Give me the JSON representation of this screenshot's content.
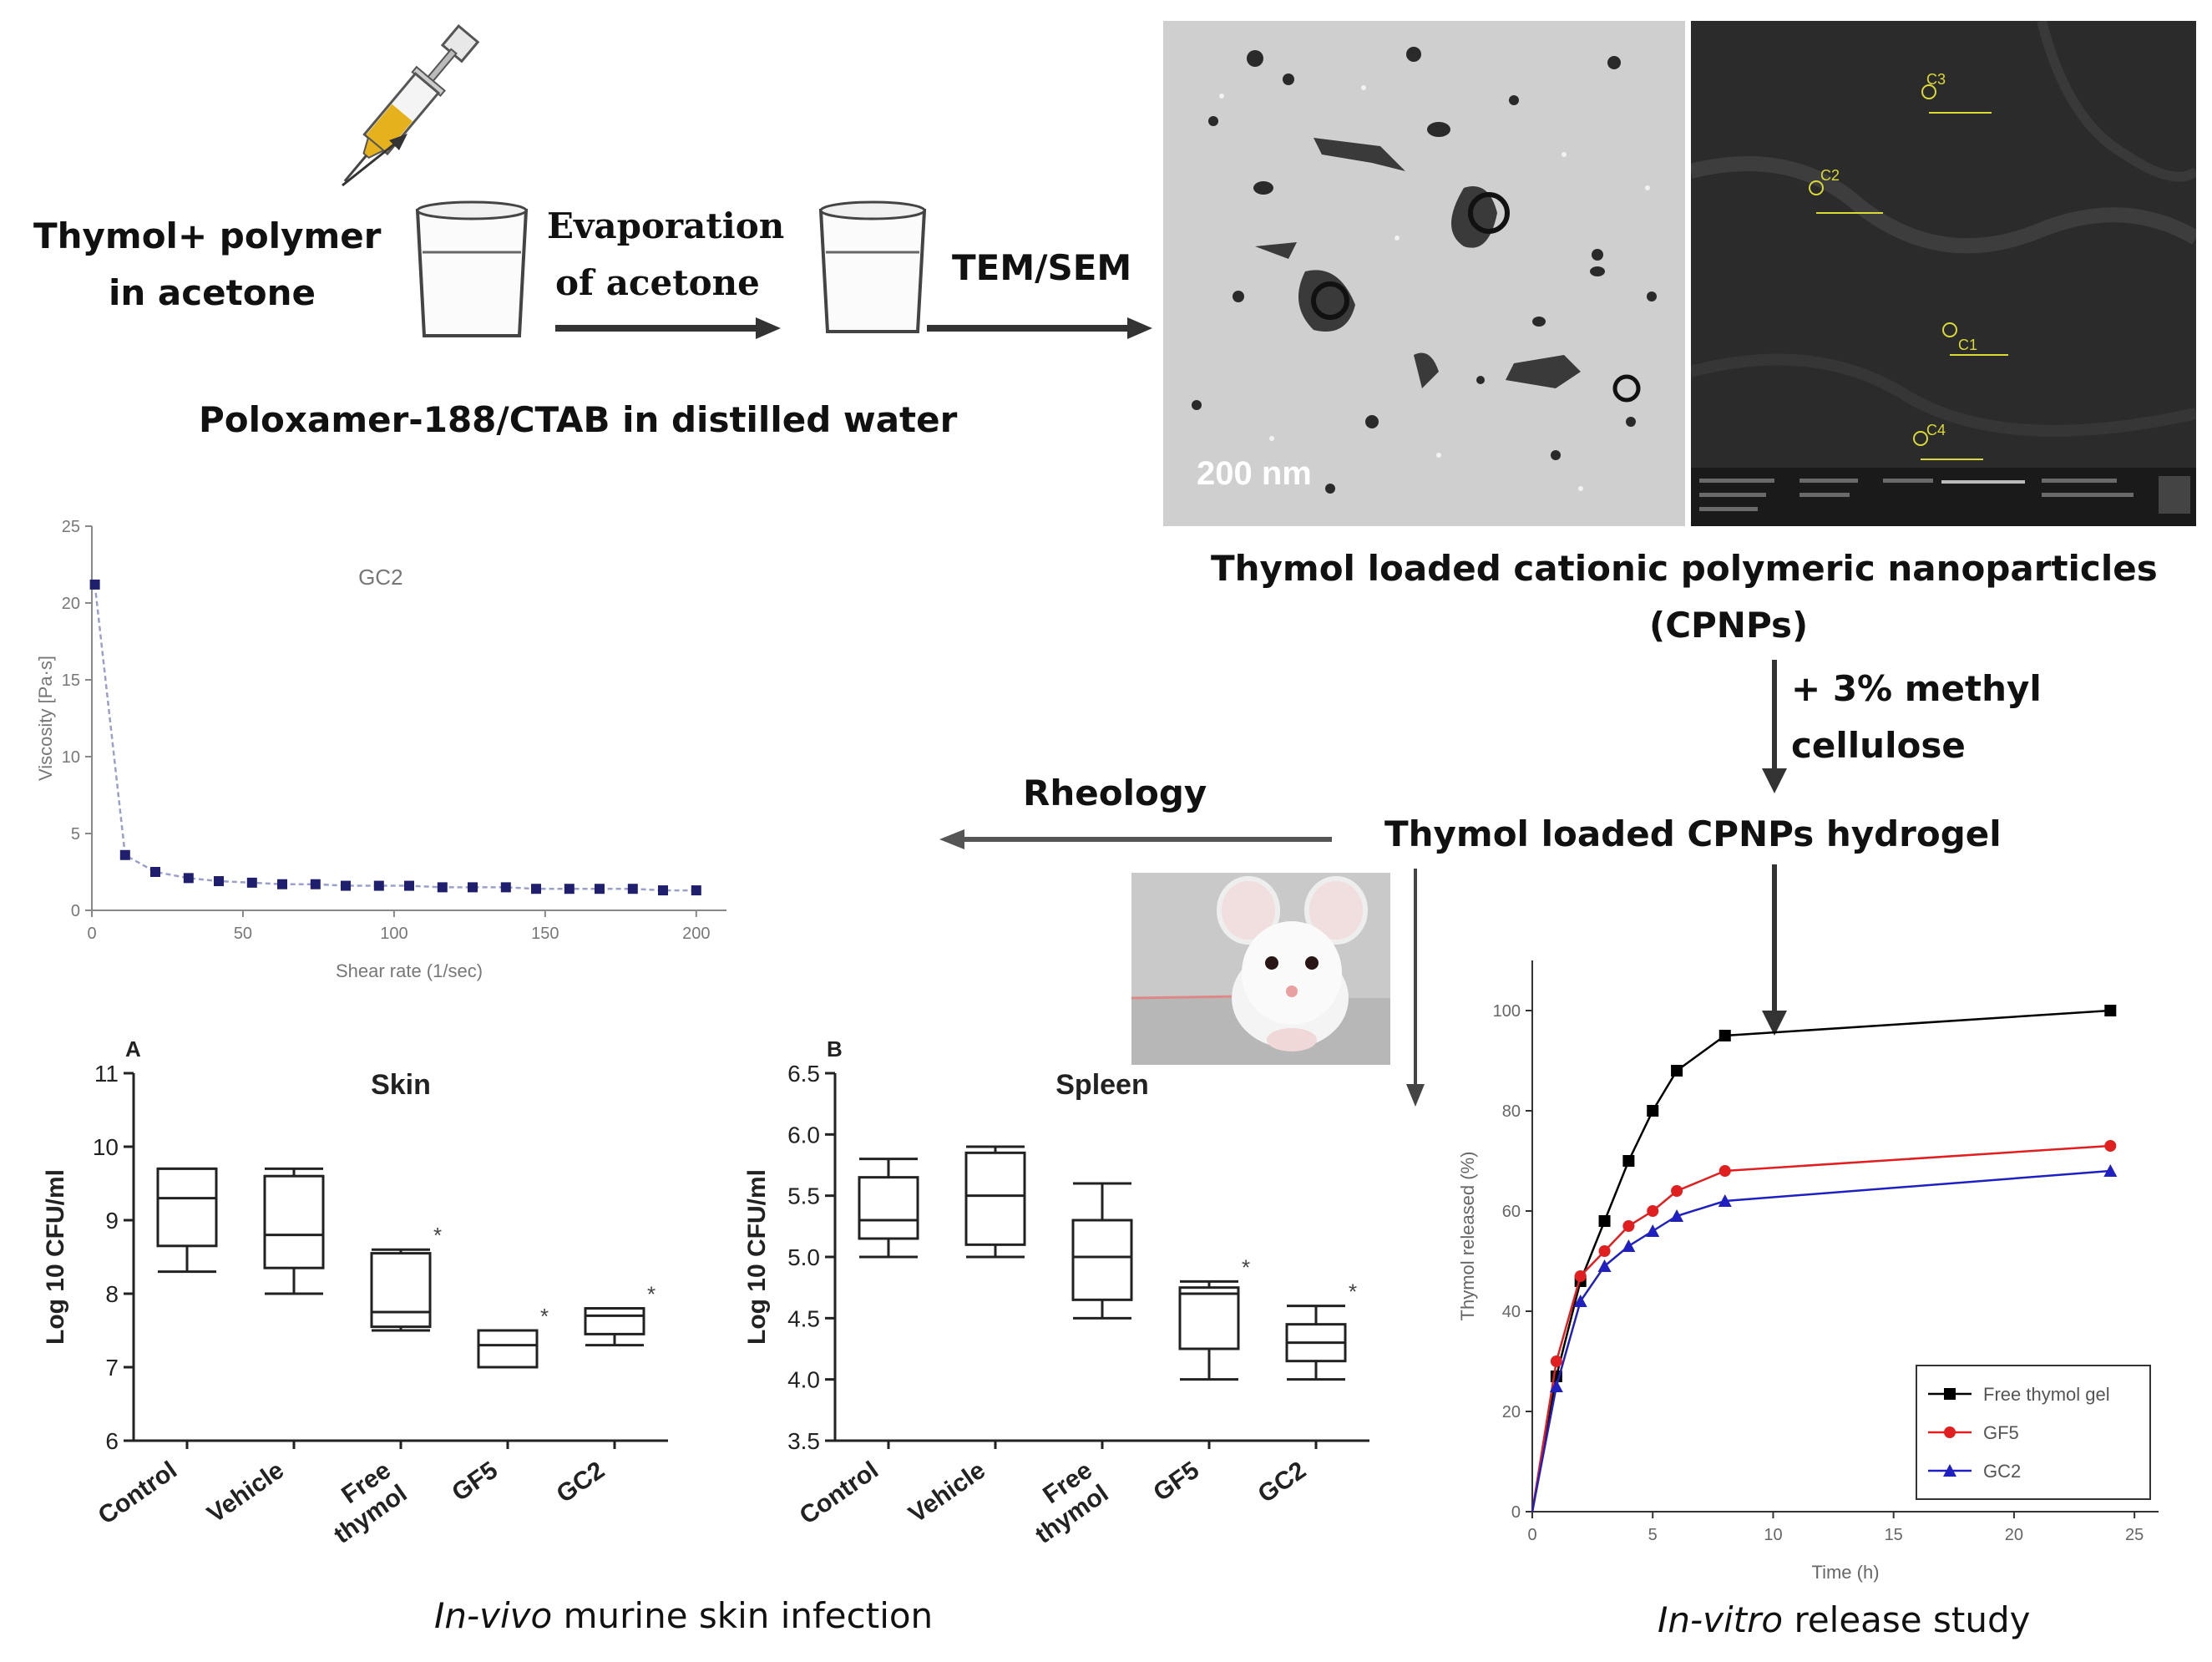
{
  "top": {
    "input_label_line1": "Thymol+ polymer",
    "input_label_line2": "in acetone",
    "evap_line1": "Evaporation",
    "evap_line2": "of acetone",
    "tem_sem": "TEM/SEM",
    "aqueous_phase": "Poloxamer-188/CTAB in distilled water"
  },
  "micrographs": {
    "tem_scale": "200 nm",
    "sem_labels": [
      "C1",
      "C2",
      "C3",
      "C4"
    ]
  },
  "cpnp": {
    "title_line1": "Thymol loaded cationic polymeric nanoparticles",
    "title_line2": "(CPNPs)",
    "additive_line1": "+ 3% methyl",
    "additive_line2": "cellulose",
    "hydrogel": "Thymol loaded CPNPs hydrogel",
    "rheology": "Rheology"
  },
  "footer": {
    "invivo_italic": "In-vivo",
    "invivo_rest": " murine skin infection",
    "invitro_italic": "In-vitro",
    "invitro_rest": " release study"
  },
  "chart_data": [
    {
      "id": "rheology",
      "type": "line",
      "title": "GC2",
      "xlabel": "Shear rate (1/sec)",
      "ylabel": "Viscosity [Pa·s]",
      "xlim": [
        0,
        210
      ],
      "ylim": [
        0,
        25
      ],
      "xticks": [
        0,
        50,
        100,
        150,
        200
      ],
      "yticks": [
        0,
        5,
        10,
        15,
        20,
        25
      ],
      "color": "#1f1f6e",
      "x": [
        1,
        11,
        21,
        32,
        42,
        53,
        63,
        74,
        84,
        95,
        105,
        116,
        126,
        137,
        147,
        158,
        168,
        179,
        189,
        200
      ],
      "y": [
        21.2,
        3.6,
        2.5,
        2.1,
        1.9,
        1.8,
        1.7,
        1.7,
        1.6,
        1.6,
        1.6,
        1.5,
        1.5,
        1.5,
        1.4,
        1.4,
        1.4,
        1.4,
        1.3,
        1.3
      ]
    },
    {
      "id": "skin",
      "type": "box",
      "panel_label": "A",
      "title": "Skin",
      "ylabel": "Log 10 CFU/ml",
      "ylim": [
        6,
        11
      ],
      "yticks": [
        6,
        7,
        8,
        9,
        10,
        11
      ],
      "categories": [
        "Control",
        "Vehicle",
        "Free thymol",
        "GF5",
        "GC2"
      ],
      "boxes": [
        {
          "min": 8.3,
          "q1": 8.65,
          "median": 9.3,
          "q3": 9.7,
          "max": 9.7,
          "sig": ""
        },
        {
          "min": 8.0,
          "q1": 8.35,
          "median": 8.8,
          "q3": 9.6,
          "max": 9.7,
          "sig": ""
        },
        {
          "min": 7.5,
          "q1": 7.55,
          "median": 7.75,
          "q3": 8.55,
          "max": 8.6,
          "sig": "*"
        },
        {
          "min": 7.0,
          "q1": 7.0,
          "median": 7.3,
          "q3": 7.5,
          "max": 7.5,
          "sig": "*"
        },
        {
          "min": 7.3,
          "q1": 7.45,
          "median": 7.7,
          "q3": 7.8,
          "max": 7.8,
          "sig": "*"
        }
      ]
    },
    {
      "id": "spleen",
      "type": "box",
      "panel_label": "B",
      "title": "Spleen",
      "ylabel": "Log 10 CFU/ml",
      "ylim": [
        3.5,
        6.5
      ],
      "yticks": [
        "3.5",
        "4.0",
        "4.5",
        "5.0",
        "5.5",
        "6.0",
        "6.5"
      ],
      "categories": [
        "Control",
        "Vehicle",
        "Free thymol",
        "GF5",
        "GC2"
      ],
      "boxes": [
        {
          "min": 5.0,
          "q1": 5.15,
          "median": 5.3,
          "q3": 5.65,
          "max": 5.8,
          "sig": ""
        },
        {
          "min": 5.0,
          "q1": 5.1,
          "median": 5.5,
          "q3": 5.85,
          "max": 5.9,
          "sig": ""
        },
        {
          "min": 4.5,
          "q1": 4.65,
          "median": 5.0,
          "q3": 5.3,
          "max": 5.6,
          "sig": ""
        },
        {
          "min": 4.0,
          "q1": 4.25,
          "median": 4.7,
          "q3": 4.75,
          "max": 4.8,
          "sig": "*"
        },
        {
          "min": 4.0,
          "q1": 4.15,
          "median": 4.3,
          "q3": 4.45,
          "max": 4.6,
          "sig": "*"
        }
      ]
    },
    {
      "id": "release",
      "type": "line",
      "xlabel": "Time (h)",
      "ylabel": "Thymol released (%)",
      "xlim": [
        0,
        26
      ],
      "ylim": [
        0,
        110
      ],
      "xticks": [
        0,
        5,
        10,
        15,
        20,
        25
      ],
      "yticks": [
        0,
        20,
        40,
        60,
        80,
        100
      ],
      "legend_position": "bottom-right",
      "x": [
        0,
        1,
        2,
        3,
        4,
        5,
        6,
        8,
        24
      ],
      "series": [
        {
          "name": "Free thymol gel",
          "color": "#000000",
          "marker": "square",
          "values": [
            0,
            27,
            46,
            58,
            70,
            80,
            88,
            95,
            100
          ]
        },
        {
          "name": "GF5",
          "color": "#e02020",
          "marker": "circle",
          "values": [
            0,
            30,
            47,
            52,
            57,
            60,
            64,
            68,
            73
          ]
        },
        {
          "name": "GC2",
          "color": "#2020c0",
          "marker": "triangle",
          "values": [
            0,
            25,
            42,
            49,
            53,
            56,
            59,
            62,
            68
          ]
        }
      ]
    }
  ]
}
